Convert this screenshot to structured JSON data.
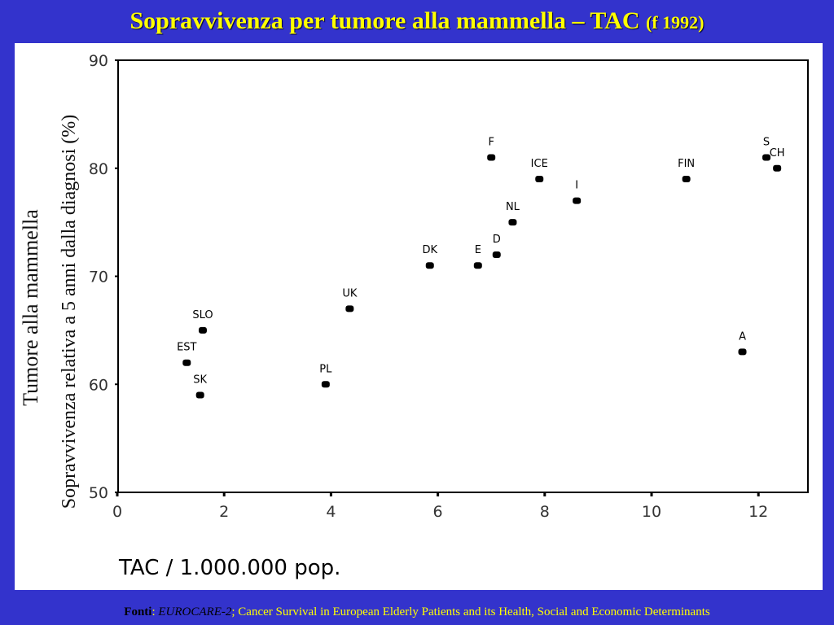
{
  "slide": {
    "title": "Sopravvivenza per tumore alla mammella – TAC",
    "title_sub": "(f 1992)"
  },
  "footer": {
    "label": "Fonti",
    "colon": ": ",
    "source": "EUROCARE-2",
    "text": "; Cancer Survival in European Elderly Patients and its Health, Social and Economic Determinants"
  },
  "colors": {
    "background": "#3333cc",
    "title": "#ffff00",
    "points": "#000000"
  },
  "chart_data": {
    "type": "scatter",
    "title": "",
    "xlabel": "TAC / 1.000.000 pop.",
    "ylabel": "Sopravvivenza relativa a 5 anni dalla diagnosi (%)",
    "ylabel_outer": "Tumore alla mammella",
    "xlim": [
      0,
      13
    ],
    "ylim": [
      50,
      90
    ],
    "x_ticks": [
      0,
      2,
      4,
      6,
      8,
      10,
      12
    ],
    "y_ticks": [
      50,
      60,
      70,
      80,
      90
    ],
    "grid": false,
    "points": [
      {
        "label": "EST",
        "x": 1.3,
        "y": 62
      },
      {
        "label": "SLO",
        "x": 1.6,
        "y": 65
      },
      {
        "label": "SK",
        "x": 1.55,
        "y": 59
      },
      {
        "label": "PL",
        "x": 3.9,
        "y": 60
      },
      {
        "label": "UK",
        "x": 4.35,
        "y": 67
      },
      {
        "label": "DK",
        "x": 5.85,
        "y": 71
      },
      {
        "label": "E",
        "x": 6.75,
        "y": 71
      },
      {
        "label": "D",
        "x": 7.1,
        "y": 72
      },
      {
        "label": "F",
        "x": 7.0,
        "y": 81
      },
      {
        "label": "NL",
        "x": 7.4,
        "y": 75
      },
      {
        "label": "ICE",
        "x": 7.9,
        "y": 79
      },
      {
        "label": "I",
        "x": 8.6,
        "y": 77
      },
      {
        "label": "FIN",
        "x": 10.65,
        "y": 79
      },
      {
        "label": "A",
        "x": 11.7,
        "y": 63
      },
      {
        "label": "S",
        "x": 12.15,
        "y": 81
      },
      {
        "label": "CH",
        "x": 12.35,
        "y": 80
      }
    ]
  }
}
